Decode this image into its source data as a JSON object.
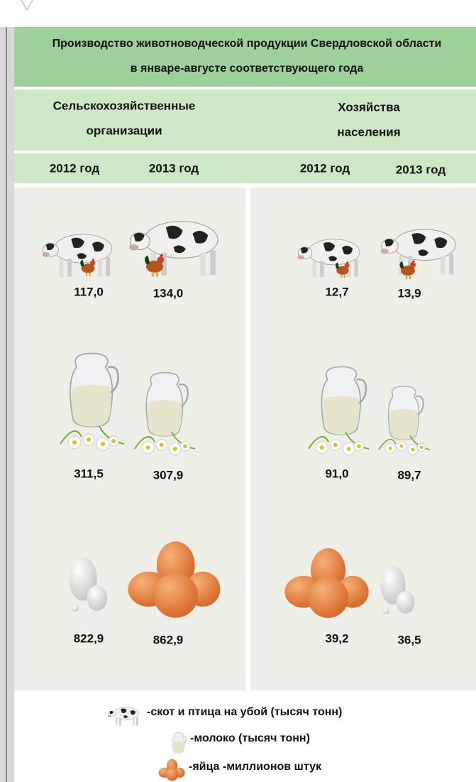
{
  "header": {
    "title": [
      "Производство животноводческой продукции Свердловской области",
      "в январе-августе соответствующего года"
    ]
  },
  "groups": [
    {
      "label": [
        "Сельскохозяйственные",
        "организации"
      ],
      "years": [
        "2012 год",
        "2013 год"
      ]
    },
    {
      "label": [
        "Хозяйства",
        "населения"
      ],
      "years": [
        "2012 год",
        "2013 год"
      ]
    }
  ],
  "rows": [
    [
      "117,0",
      "134,0",
      "12,7",
      "13,9"
    ],
    [
      "311,5",
      "307,9",
      "91,0",
      "89,7"
    ],
    [
      "822,9",
      "862,9",
      "39,2",
      "36,5"
    ]
  ],
  "legend": [
    "-скот и птица на убой (тысяч тонн)",
    "-молоко (тысяч тонн)",
    "-яйца -миллионов штук"
  ]
}
